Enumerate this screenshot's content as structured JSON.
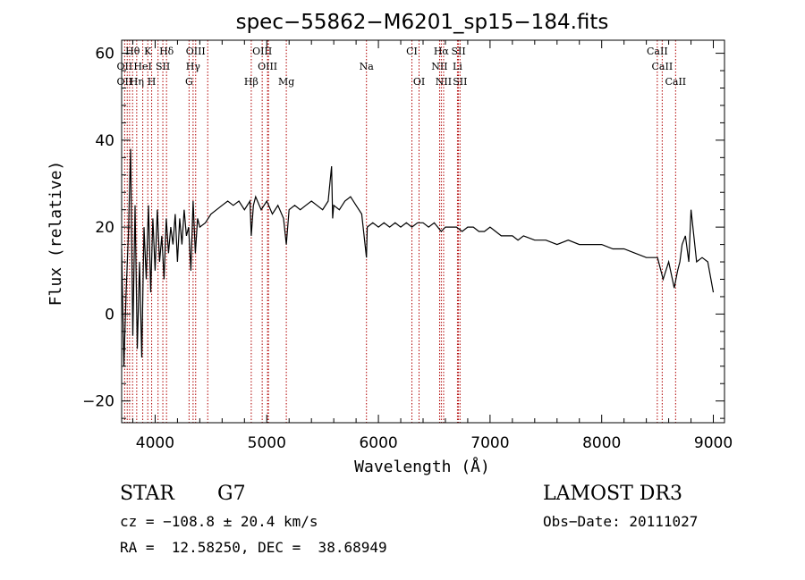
{
  "chart_data": {
    "type": "line",
    "title": "spec−55862−M6201_sp15−184.fits",
    "xlabel": "Wavelength (Å)",
    "ylabel": "Flux (relative)",
    "xlim": [
      3700,
      9100
    ],
    "ylim": [
      -25,
      63
    ],
    "x_ticks": [
      4000,
      5000,
      6000,
      7000,
      8000,
      9000
    ],
    "x_tick_labels": [
      "4000",
      "5000",
      "6000",
      "7000",
      "8000",
      "9000"
    ],
    "y_ticks": [
      -20,
      0,
      20,
      40,
      60
    ],
    "y_tick_labels": [
      "−20",
      "0",
      "20",
      "40",
      "60"
    ],
    "series": [
      {
        "name": "flux",
        "x": [
          3700,
          3720,
          3740,
          3760,
          3780,
          3800,
          3820,
          3840,
          3860,
          3880,
          3900,
          3920,
          3940,
          3960,
          3980,
          4000,
          4020,
          4040,
          4060,
          4080,
          4100,
          4120,
          4140,
          4160,
          4180,
          4200,
          4220,
          4240,
          4260,
          4280,
          4300,
          4320,
          4340,
          4360,
          4380,
          4400,
          4450,
          4500,
          4550,
          4600,
          4650,
          4700,
          4750,
          4800,
          4850,
          4861,
          4880,
          4900,
          4950,
          5000,
          5050,
          5100,
          5150,
          5175,
          5200,
          5250,
          5300,
          5350,
          5400,
          5450,
          5500,
          5550,
          5580,
          5590,
          5600,
          5650,
          5700,
          5750,
          5800,
          5850,
          5893,
          5900,
          5950,
          6000,
          6050,
          6100,
          6150,
          6200,
          6250,
          6300,
          6350,
          6400,
          6450,
          6500,
          6563,
          6600,
          6650,
          6700,
          6750,
          6800,
          6850,
          6900,
          6950,
          7000,
          7100,
          7200,
          7250,
          7300,
          7400,
          7500,
          7600,
          7700,
          7800,
          7900,
          8000,
          8100,
          8200,
          8300,
          8400,
          8500,
          8550,
          8600,
          8650,
          8680,
          8700,
          8720,
          8750,
          8780,
          8800,
          8850,
          8900,
          8950,
          9000
        ],
        "values": [
          15,
          -12,
          5,
          18,
          38,
          -5,
          25,
          -8,
          12,
          -10,
          20,
          8,
          25,
          5,
          22,
          10,
          24,
          12,
          18,
          8,
          22,
          14,
          20,
          16,
          23,
          12,
          22,
          16,
          24,
          18,
          20,
          10,
          26,
          14,
          22,
          20,
          21,
          23,
          24,
          25,
          26,
          25,
          26,
          24,
          26,
          18,
          25,
          27,
          24,
          26,
          23,
          25,
          22,
          16,
          24,
          25,
          24,
          25,
          26,
          25,
          24,
          26,
          34,
          22,
          25,
          24,
          26,
          27,
          25,
          23,
          13,
          20,
          21,
          20,
          21,
          20,
          21,
          20,
          21,
          20,
          21,
          21,
          20,
          21,
          19,
          20,
          20,
          20,
          19,
          20,
          20,
          19,
          19,
          20,
          18,
          18,
          17,
          18,
          17,
          17,
          16,
          17,
          16,
          16,
          16,
          15,
          15,
          14,
          13,
          13,
          8,
          12,
          6,
          10,
          12,
          16,
          18,
          12,
          24,
          12,
          13,
          12,
          5
        ],
        "color": "#000000"
      }
    ],
    "lines": [
      {
        "label": "Hθ",
        "x": 3798,
        "row": 0
      },
      {
        "label": "K",
        "x": 3934,
        "row": 0
      },
      {
        "label": "Hδ",
        "x": 4102,
        "row": 0
      },
      {
        "label": "OIII",
        "x": 4363,
        "row": 0
      },
      {
        "label": "OIII",
        "x": 4959,
        "row": 0
      },
      {
        "label": "CI",
        "x": 6300,
        "row": 0
      },
      {
        "label": "Hα",
        "x": 6563,
        "row": 0
      },
      {
        "label": "SII",
        "x": 6717,
        "row": 0
      },
      {
        "label": "CaII",
        "x": 8498,
        "row": 0
      },
      {
        "label": "OII",
        "x": 3727,
        "row": 1
      },
      {
        "label": "HeI",
        "x": 3889,
        "row": 1
      },
      {
        "label": "SII",
        "x": 4069,
        "row": 1
      },
      {
        "label": "Hγ",
        "x": 4340,
        "row": 1
      },
      {
        "label": "OIII",
        "x": 5007,
        "row": 1
      },
      {
        "label": "Na",
        "x": 5893,
        "row": 1
      },
      {
        "label": "NII",
        "x": 6548,
        "row": 1
      },
      {
        "label": "Li",
        "x": 6708,
        "row": 1
      },
      {
        "label": "CaII",
        "x": 8542,
        "row": 1
      },
      {
        "label": "OII",
        "x": 3727,
        "row": 2
      },
      {
        "label": "Hη",
        "x": 3835,
        "row": 2
      },
      {
        "label": "H",
        "x": 3969,
        "row": 2
      },
      {
        "label": "G",
        "x": 4304,
        "row": 2
      },
      {
        "label": "Hβ",
        "x": 4861,
        "row": 2
      },
      {
        "label": "Mg",
        "x": 5175,
        "row": 2
      },
      {
        "label": "OI",
        "x": 6364,
        "row": 2
      },
      {
        "label": "NII",
        "x": 6584,
        "row": 2
      },
      {
        "label": "SII",
        "x": 6731,
        "row": 2
      },
      {
        "label": "CaII",
        "x": 8662,
        "row": 2
      }
    ],
    "extra_line_markers": [
      3750,
      3771,
      4026,
      4471,
      5015
    ]
  },
  "info": {
    "class": "STAR",
    "subclass": "G7",
    "survey": "LAMOST DR3",
    "cz": "cz = −108.8 ± 20.4 km/s",
    "obs_date": "Obs−Date: 20111027",
    "radec": "RA =  12.58250, DEC =  38.68949"
  }
}
